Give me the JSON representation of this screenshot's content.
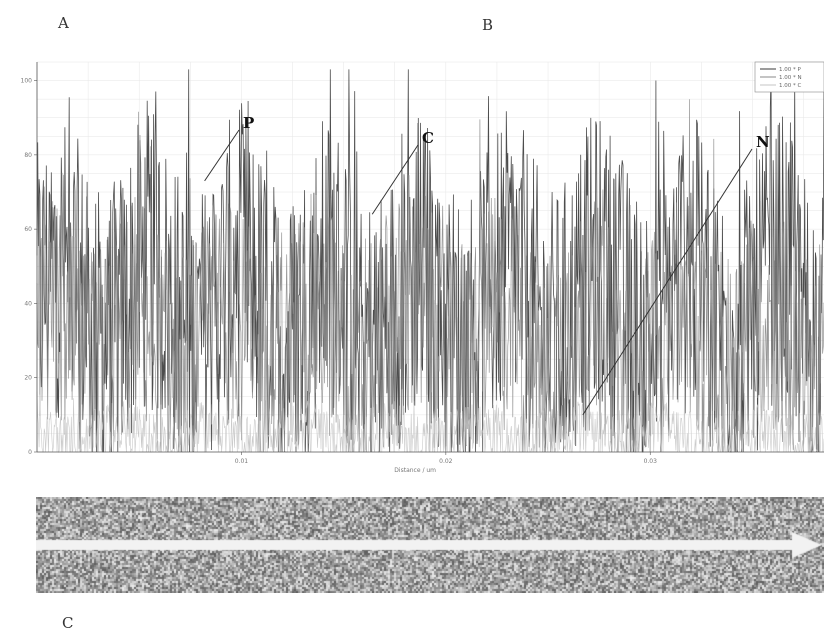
{
  "panels": {
    "a": "A",
    "b": "B",
    "c": "C"
  },
  "chart_data": {
    "type": "line",
    "xlabel": "Distance / um",
    "ylabel": "",
    "xlim": [
      0,
      0.0385
    ],
    "ylim": [
      0,
      105
    ],
    "xticks": [
      {
        "value": 0.01,
        "label": "0.01"
      },
      {
        "value": 0.02,
        "label": "0.02"
      },
      {
        "value": 0.03,
        "label": "0.03"
      }
    ],
    "yticks": [
      {
        "value": 0,
        "label": "0"
      },
      {
        "value": 20,
        "label": "20"
      },
      {
        "value": 40,
        "label": "40"
      },
      {
        "value": 60,
        "label": "60"
      },
      {
        "value": 80,
        "label": "80"
      },
      {
        "value": 100,
        "label": "100"
      }
    ],
    "grid": true,
    "legend_position": "top-right",
    "series": [
      {
        "name": "1.00 * P",
        "color": "#3a3a3a",
        "mean": 40,
        "spread": 52,
        "width": 0.8
      },
      {
        "name": "1.00 * N",
        "color": "#8a8a8a",
        "mean": 30,
        "spread": 40,
        "width": 0.7
      },
      {
        "name": "1.00 * C",
        "color": "#c4c4c4",
        "mean": 4,
        "spread": 10,
        "width": 0.6
      }
    ],
    "annotations": [
      {
        "label": "P",
        "tip_x": 0.0082,
        "tip_y": 73
      },
      {
        "label": "C",
        "tip_x": 0.0164,
        "tip_y": 64
      },
      {
        "label": "N",
        "tip_x": 0.0267,
        "tip_y": 10
      }
    ]
  },
  "map": {
    "arrow_color": "#f2f2f2",
    "background": "#9a9a9a"
  }
}
